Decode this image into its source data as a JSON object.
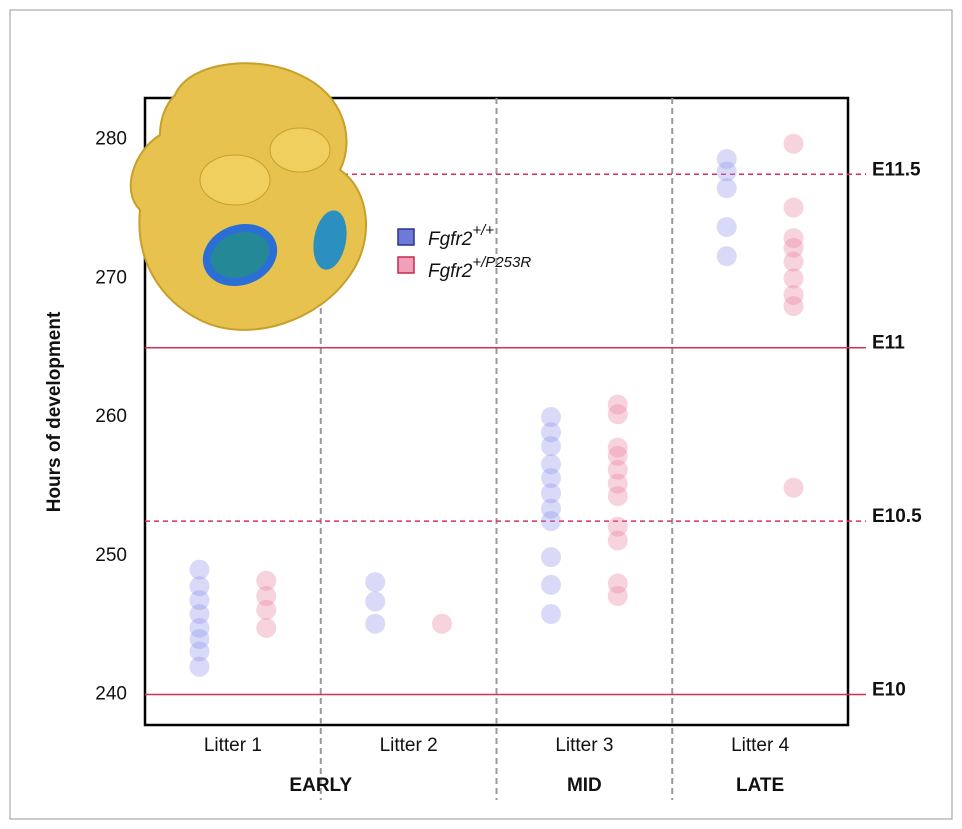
{
  "chart_data": {
    "type": "strip",
    "y_axis_label": "Hours of development",
    "categories": [
      "Litter 1",
      "Litter 2",
      "Litter 3",
      "Litter 4"
    ],
    "groups": [
      {
        "label": "EARLY",
        "categories": [
          "Litter 1",
          "Litter 2"
        ]
      },
      {
        "label": "MID",
        "categories": [
          "Litter 3"
        ]
      },
      {
        "label": "LATE",
        "categories": [
          "Litter 4"
        ]
      }
    ],
    "ylim": [
      237.8,
      283.0
    ],
    "yticks": [
      240,
      250,
      260,
      270,
      280
    ],
    "series": [
      {
        "name": "Fgfr2",
        "superscript": "+/+",
        "color": "#8f96ea",
        "values": [
          [
            249.0,
            247.8,
            246.8,
            245.8,
            244.8,
            244.0,
            243.1,
            242.0
          ],
          [
            248.1,
            246.7,
            245.1
          ],
          [
            260.0,
            258.9,
            257.9,
            256.6,
            255.6,
            254.5,
            253.4,
            252.5,
            249.9,
            247.9,
            245.8
          ],
          [
            278.6,
            277.7,
            276.5,
            273.7,
            271.6
          ]
        ]
      },
      {
        "name": "Fgfr2",
        "superscript": "+/P253R",
        "color": "#e8809e",
        "values": [
          [
            248.2,
            247.1,
            246.1,
            244.8
          ],
          [
            245.1
          ],
          [
            260.9,
            260.2,
            257.8,
            257.2,
            256.2,
            255.2,
            254.3,
            252.1,
            251.1,
            248.0,
            247.1
          ],
          [
            279.7,
            275.1,
            272.9,
            272.2,
            271.2,
            270.0,
            268.8,
            268.0,
            254.9
          ]
        ]
      }
    ],
    "reference_lines": [
      {
        "value": 240,
        "label": "E10",
        "style": "solid"
      },
      {
        "value": 252.5,
        "label": "E10.5",
        "style": "dashed"
      },
      {
        "value": 265,
        "label": "E11",
        "style": "solid"
      },
      {
        "value": 277.5,
        "label": "E11.5",
        "style": "dashed"
      }
    ],
    "reference_color": "#d6305a"
  }
}
